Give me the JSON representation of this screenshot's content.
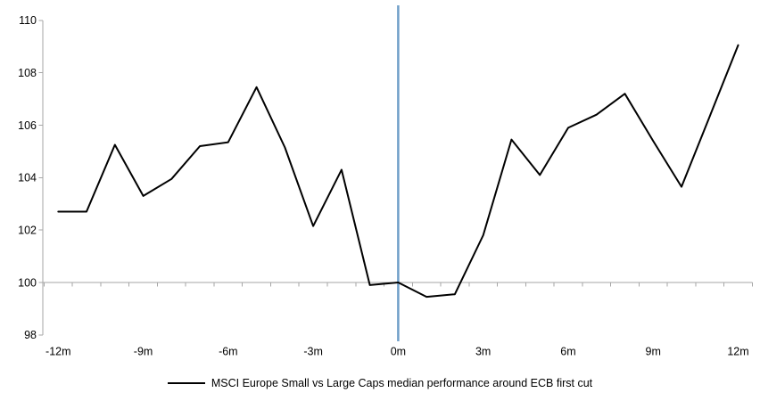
{
  "chart_data": {
    "type": "line",
    "legend_position": "bottom-center",
    "grid": "off",
    "series": [
      {
        "name": "MSCI Europe Small vs Large Caps median performance around ECB first cut",
        "x": [
          -12,
          -11,
          -10,
          -9,
          -8,
          -7,
          -6,
          -5,
          -4,
          -3,
          -2,
          -1,
          0,
          1,
          2,
          3,
          4,
          5,
          6,
          7,
          8,
          9,
          10,
          11,
          12
        ],
        "values": [
          102.7,
          102.7,
          105.25,
          103.3,
          103.95,
          105.2,
          105.35,
          107.45,
          105.15,
          102.15,
          104.3,
          99.9,
          100.0,
          99.45,
          99.55,
          101.8,
          105.45,
          104.1,
          105.9,
          106.4,
          107.2,
          105.4,
          103.65,
          106.35,
          109.05
        ]
      }
    ],
    "x_axis": {
      "min": -12.5,
      "max": 12.5,
      "minor_tick_step": 1,
      "labeled_ticks": [
        -12,
        -9,
        -6,
        -3,
        0,
        3,
        6,
        9,
        12
      ],
      "tick_labels": [
        "-12m",
        "-9m",
        "-6m",
        "-3m",
        "0m",
        "3m",
        "6m",
        "9m",
        "12m"
      ]
    },
    "y_axis": {
      "min": 98,
      "max": 110,
      "ticks": [
        98,
        100,
        102,
        104,
        106,
        108,
        110
      ],
      "tick_labels": [
        "98",
        "100",
        "102",
        "104",
        "106",
        "108",
        "110"
      ]
    },
    "baseline_y": 100,
    "event_line_x": 0,
    "colors": {
      "series_line": "#000000",
      "event_line": "#6F9FC8",
      "axis": "#A6A6A6",
      "baseline": "#A6A6A6",
      "text": "#000000",
      "background": "#FFFFFF"
    }
  }
}
